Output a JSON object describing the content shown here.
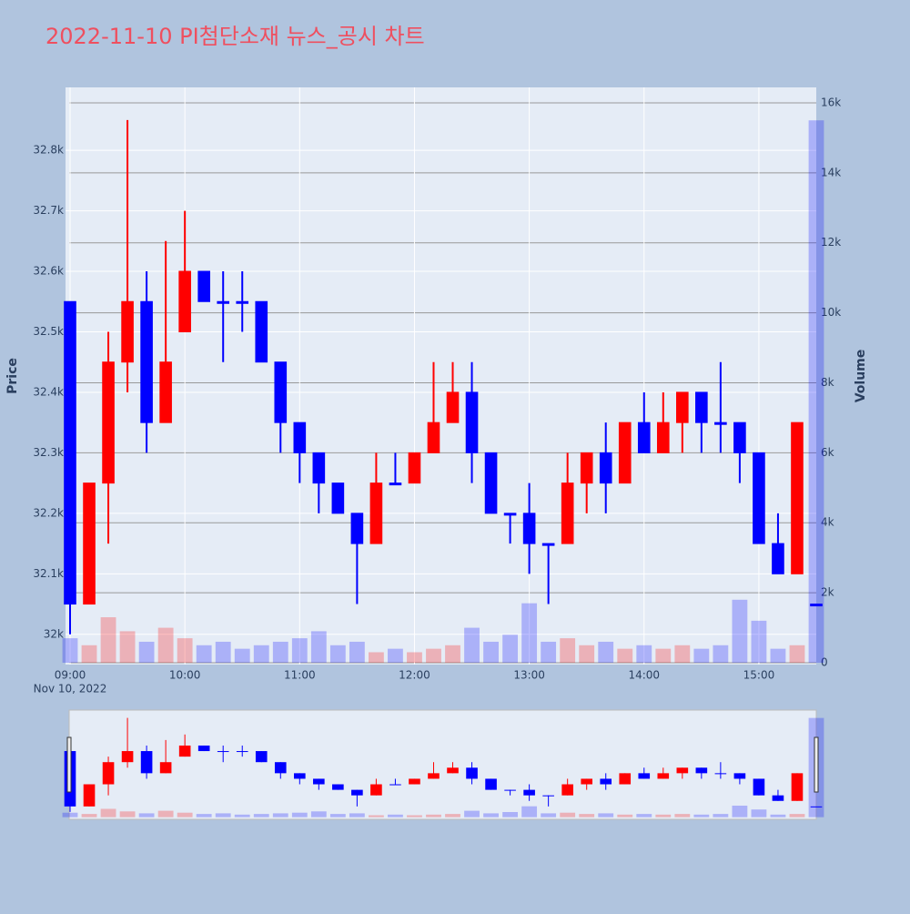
{
  "chart_data": {
    "type": "candlestick",
    "title": "2022-11-10 PI첨단소재 뉴스_공시 차트",
    "x": [
      "09:00",
      "09:10",
      "09:20",
      "09:30",
      "09:40",
      "09:50",
      "10:00",
      "10:10",
      "10:20",
      "10:30",
      "10:40",
      "10:50",
      "11:00",
      "11:10",
      "11:20",
      "11:30",
      "11:40",
      "11:50",
      "12:00",
      "12:10",
      "12:20",
      "12:30",
      "12:40",
      "12:50",
      "13:00",
      "13:10",
      "13:20",
      "13:30",
      "13:40",
      "13:50",
      "14:00",
      "14:10",
      "14:20",
      "14:30",
      "14:40",
      "14:50",
      "15:00",
      "15:10",
      "15:20",
      "15:30"
    ],
    "open": [
      32550,
      32050,
      32250,
      32450,
      32550,
      32350,
      32500,
      32600,
      32550,
      32550,
      32550,
      32450,
      32350,
      32300,
      32250,
      32200,
      32150,
      32250,
      32250,
      32300,
      32350,
      32400,
      32300,
      32200,
      32200,
      32150,
      32150,
      32250,
      32300,
      32250,
      32350,
      32300,
      32350,
      32400,
      32350,
      32350,
      32300,
      32150,
      32100,
      32050
    ],
    "high": [
      32550,
      32250,
      32500,
      32850,
      32600,
      32650,
      32700,
      32600,
      32600,
      32600,
      32550,
      32450,
      32350,
      32300,
      32250,
      32200,
      32300,
      32300,
      32300,
      32450,
      32450,
      32450,
      32300,
      32200,
      32250,
      32150,
      32300,
      32300,
      32350,
      32350,
      32400,
      32400,
      32400,
      32400,
      32450,
      32350,
      32300,
      32200,
      32350,
      32050
    ],
    "low": [
      32000,
      32050,
      32150,
      32400,
      32300,
      32350,
      32500,
      32550,
      32450,
      32500,
      32450,
      32300,
      32250,
      32200,
      32200,
      32050,
      32150,
      32250,
      32250,
      32300,
      32350,
      32250,
      32200,
      32150,
      32100,
      32050,
      32150,
      32200,
      32200,
      32250,
      32300,
      32300,
      32300,
      32300,
      32300,
      32250,
      32150,
      32100,
      32100,
      32050
    ],
    "close": [
      32050,
      32250,
      32450,
      32550,
      32350,
      32450,
      32600,
      32550,
      32550,
      32550,
      32450,
      32350,
      32300,
      32250,
      32200,
      32150,
      32250,
      32250,
      32300,
      32350,
      32400,
      32300,
      32200,
      32200,
      32150,
      32150,
      32250,
      32300,
      32250,
      32350,
      32300,
      32350,
      32400,
      32350,
      32350,
      32300,
      32150,
      32100,
      32350,
      32050
    ],
    "volume": [
      700,
      500,
      1300,
      900,
      600,
      1000,
      700,
      500,
      600,
      400,
      500,
      600,
      700,
      900,
      500,
      600,
      300,
      400,
      300,
      400,
      500,
      1000,
      600,
      800,
      1700,
      600,
      700,
      500,
      600,
      400,
      500,
      400,
      500,
      400,
      500,
      1800,
      1200,
      400,
      500,
      15500
    ],
    "increasing_color": "#ff0000",
    "decreasing_color": "#0000ff",
    "xlim": [
      "09:00",
      "15:30"
    ],
    "xticks": [
      "09:00",
      "10:00",
      "11:00",
      "12:00",
      "13:00",
      "14:00",
      "15:00"
    ],
    "date_label": "Nov 10, 2022",
    "ylim": [
      31950,
      32904
    ],
    "yticks": [
      {
        "value": 32000,
        "label": "32k"
      },
      {
        "value": 32100,
        "label": "32.1k"
      },
      {
        "value": 32200,
        "label": "32.2k"
      },
      {
        "value": 32300,
        "label": "32.3k"
      },
      {
        "value": 32400,
        "label": "32.4k"
      },
      {
        "value": 32500,
        "label": "32.5k"
      },
      {
        "value": 32600,
        "label": "32.6k"
      },
      {
        "value": 32700,
        "label": "32.7k"
      },
      {
        "value": 32800,
        "label": "32.8k"
      }
    ],
    "y_label": "Price",
    "y2lim": [
      -52,
      16442
    ],
    "y2ticks": [
      0,
      {
        "value": 2000,
        "label": "2k"
      },
      {
        "value": 4000,
        "label": "4k"
      },
      {
        "value": 6000,
        "label": "6k"
      },
      {
        "value": 8000,
        "label": "8k"
      },
      {
        "value": 10000,
        "label": "10k"
      },
      {
        "value": 12000,
        "label": "12k"
      },
      {
        "value": 14000,
        "label": "14k"
      },
      {
        "value": 16000,
        "label": "16k"
      }
    ],
    "y2_label": "Volume",
    "rangeslider": true
  }
}
